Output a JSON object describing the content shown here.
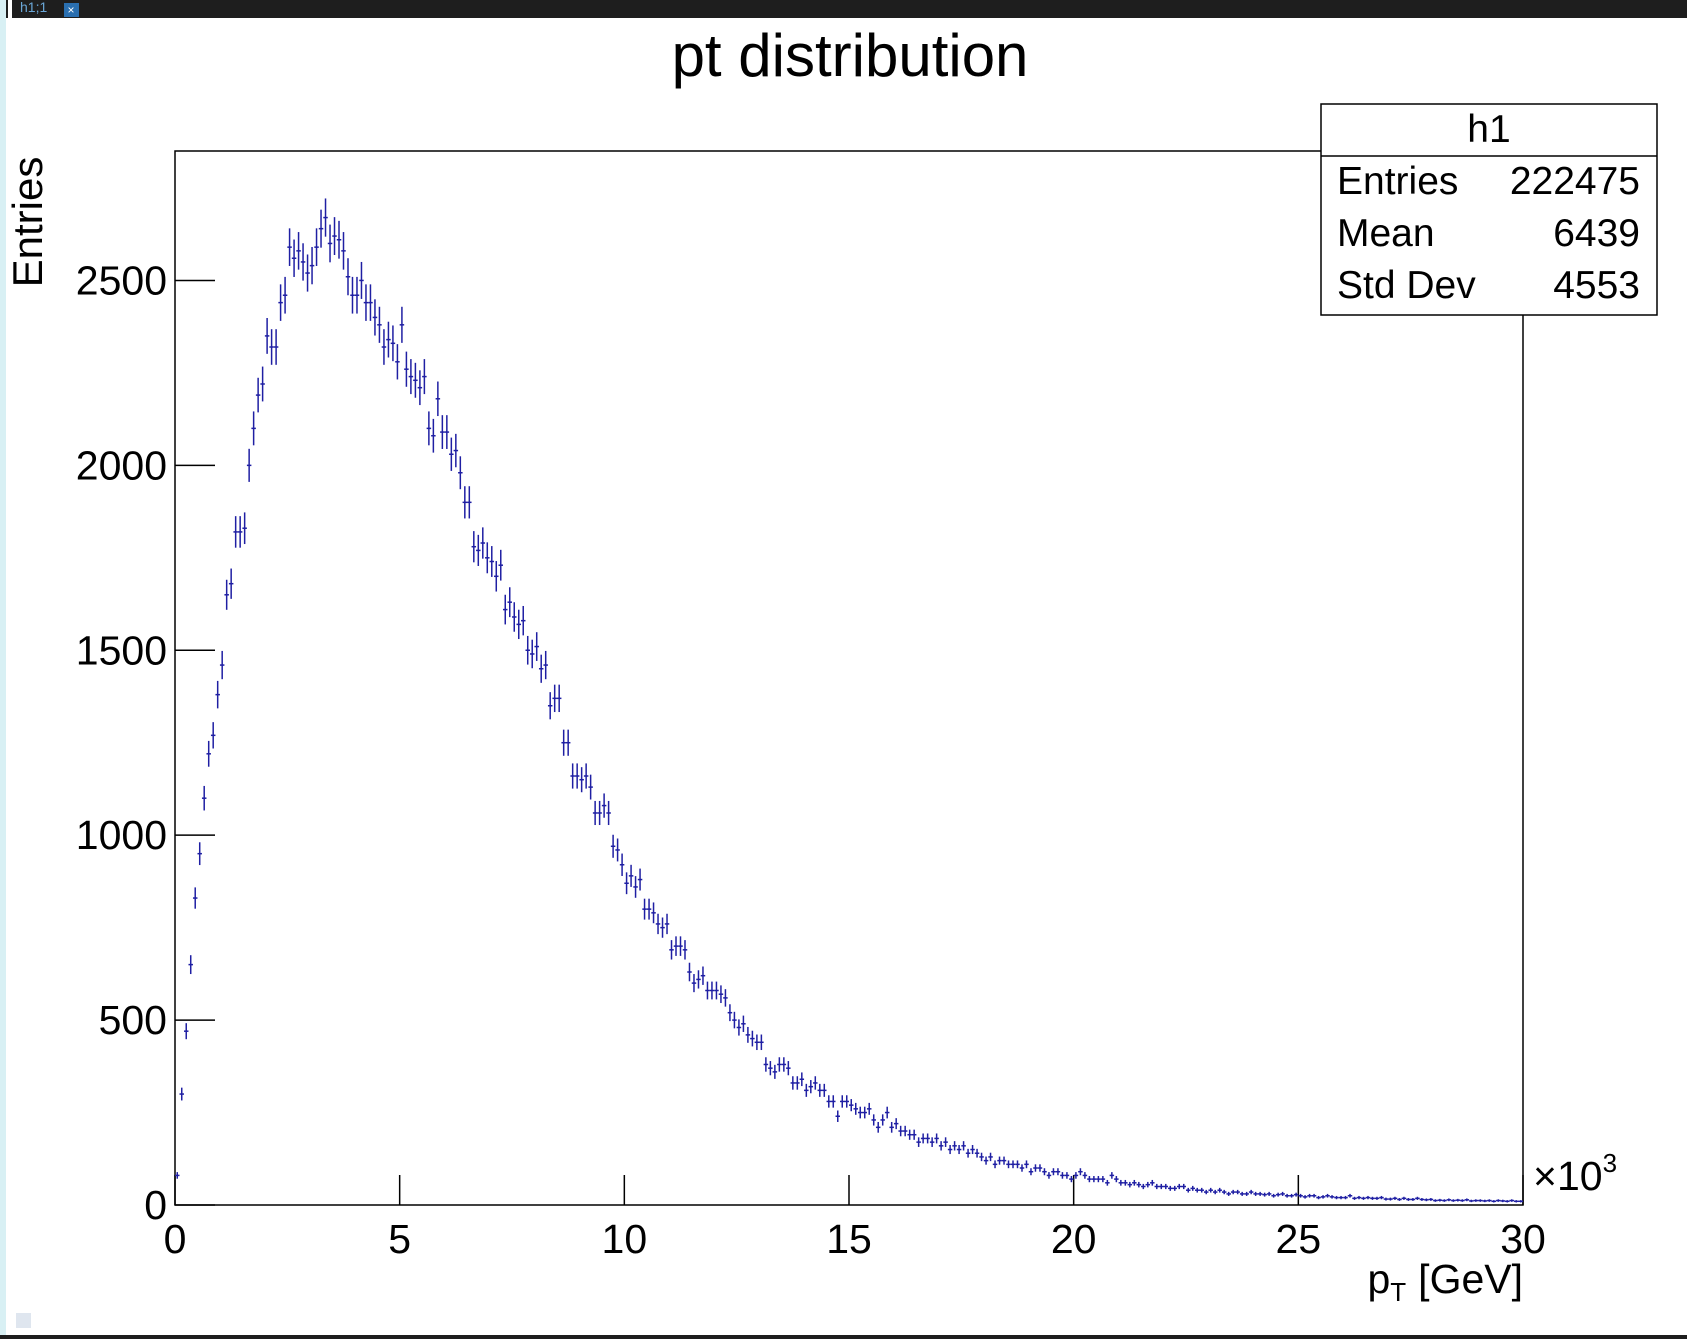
{
  "canvas_tab": "h1;1",
  "chart_data": {
    "type": "histogram",
    "title": "pt distribution",
    "y_label": "Entries",
    "x_label": "p",
    "x_label_sub": "T",
    "x_label_unit": "[GeV]",
    "x_multiplier": "×10",
    "x_multiplier_exp": "3",
    "color": "#1f1fa3",
    "error_bars": true,
    "xlim": [
      0,
      30
    ],
    "xticks": [
      0,
      5,
      10,
      15,
      20,
      25,
      30
    ],
    "ylim": [
      0,
      2850
    ],
    "yticks": [
      0,
      500,
      1000,
      1500,
      2000,
      2500
    ],
    "bins": [
      0,
      0.1,
      0.2,
      0.3,
      0.4,
      0.5,
      0.6,
      0.7,
      0.8,
      0.9,
      1,
      1.1,
      1.2,
      1.3,
      1.4,
      1.5,
      1.6,
      1.7,
      1.8,
      1.9,
      2,
      2.1,
      2.2,
      2.3,
      2.4,
      2.5,
      2.6,
      2.7,
      2.8,
      2.9,
      3,
      3.1,
      3.2,
      3.3,
      3.4,
      3.5,
      3.6,
      3.7,
      3.8,
      3.9,
      4,
      4.1,
      4.2,
      4.3,
      4.4,
      4.5,
      4.6,
      4.7,
      4.8,
      4.9,
      5,
      5.1,
      5.2,
      5.3,
      5.4,
      5.5,
      5.6,
      5.7,
      5.8,
      5.9,
      6,
      6.1,
      6.2,
      6.3,
      6.4,
      6.5,
      6.6,
      6.7,
      6.8,
      6.9,
      7,
      7.1,
      7.2,
      7.3,
      7.4,
      7.5,
      7.6,
      7.7,
      7.8,
      7.9,
      8,
      8.1,
      8.2,
      8.3,
      8.4,
      8.5,
      8.6,
      8.7,
      8.8,
      8.9,
      9,
      9.1,
      9.2,
      9.3,
      9.4,
      9.5,
      9.6,
      9.7,
      9.8,
      9.9,
      10,
      10.1,
      10.2,
      10.3,
      10.4,
      10.5,
      10.6,
      10.7,
      10.8,
      10.9,
      11,
      11.1,
      11.2,
      11.3,
      11.4,
      11.5,
      11.6,
      11.7,
      11.8,
      11.9,
      12,
      12.1,
      12.2,
      12.3,
      12.4,
      12.5,
      12.6,
      12.7,
      12.8,
      12.9,
      13,
      13.1,
      13.2,
      13.3,
      13.4,
      13.5,
      13.6,
      13.7,
      13.8,
      13.9,
      14,
      14.1,
      14.2,
      14.3,
      14.4,
      14.5,
      14.6,
      14.7,
      14.8,
      14.9,
      15,
      15.1,
      15.2,
      15.3,
      15.4,
      15.5,
      15.6,
      15.7,
      15.8,
      15.9,
      16,
      16.1,
      16.2,
      16.3,
      16.4,
      16.5,
      16.6,
      16.7,
      16.8,
      16.9,
      17,
      17.1,
      17.2,
      17.3,
      17.4,
      17.5,
      17.6,
      17.7,
      17.8,
      17.9,
      18,
      18.1,
      18.2,
      18.3,
      18.4,
      18.5,
      18.6,
      18.7,
      18.8,
      18.9,
      19,
      19.1,
      19.2,
      19.3,
      19.4,
      19.5,
      19.6,
      19.7,
      19.8,
      19.9,
      20,
      20.1,
      20.2,
      20.3,
      20.4,
      20.5,
      20.6,
      20.7,
      20.8,
      20.9,
      21,
      21.1,
      21.2,
      21.3,
      21.4,
      21.5,
      21.6,
      21.7,
      21.8,
      21.9,
      22,
      22.1,
      22.2,
      22.3,
      22.4,
      22.5,
      22.6,
      22.7,
      22.8,
      22.9,
      23,
      23.1,
      23.2,
      23.3,
      23.4,
      23.5,
      23.6,
      23.7,
      23.8,
      23.9,
      24,
      24.1,
      24.2,
      24.3,
      24.4,
      24.5,
      24.6,
      24.7,
      24.8,
      24.9,
      25,
      25.1,
      25.2,
      25.3,
      25.4,
      25.5,
      25.6,
      25.7,
      25.8,
      25.9,
      26,
      26.1,
      26.2,
      26.3,
      26.4,
      26.5,
      26.6,
      26.7,
      26.8,
      26.9,
      27,
      27.1,
      27.2,
      27.3,
      27.4,
      27.5,
      27.6,
      27.7,
      27.8,
      27.9,
      28,
      28.1,
      28.2,
      28.3,
      28.4,
      28.5,
      28.6,
      28.7,
      28.8,
      28.9,
      29,
      29.1,
      29.2,
      29.3,
      29.4,
      29.5,
      29.6,
      29.7,
      29.8,
      29.9,
      30
    ],
    "values": [
      80,
      300,
      470,
      650,
      830,
      950,
      1100,
      1220,
      1270,
      1380,
      1460,
      1650,
      1680,
      1820,
      1820,
      1830,
      2000,
      2100,
      2190,
      2220,
      2350,
      2320,
      2320,
      2440,
      2460,
      2590,
      2560,
      2580,
      2550,
      2520,
      2540,
      2590,
      2640,
      2670,
      2600,
      2620,
      2610,
      2580,
      2510,
      2460,
      2460,
      2500,
      2440,
      2440,
      2400,
      2380,
      2320,
      2340,
      2330,
      2280,
      2380,
      2260,
      2240,
      2230,
      2210,
      2240,
      2100,
      2080,
      2180,
      2090,
      2090,
      2030,
      2040,
      1980,
      1900,
      1900,
      1780,
      1770,
      1790,
      1750,
      1740,
      1700,
      1730,
      1610,
      1630,
      1590,
      1570,
      1580,
      1500,
      1490,
      1510,
      1450,
      1460,
      1350,
      1370,
      1370,
      1250,
      1250,
      1160,
      1160,
      1150,
      1160,
      1130,
      1060,
      1060,
      1080,
      1060,
      970,
      960,
      920,
      870,
      890,
      860,
      880,
      800,
      800,
      790,
      760,
      750,
      760,
      690,
      700,
      700,
      690,
      630,
      600,
      610,
      620,
      580,
      580,
      580,
      570,
      560,
      520,
      500,
      480,
      490,
      460,
      450,
      440,
      440,
      380,
      370,
      360,
      380,
      380,
      370,
      330,
      330,
      340,
      310,
      320,
      330,
      310,
      310,
      280,
      280,
      240,
      280,
      280,
      270,
      260,
      250,
      250,
      260,
      230,
      210,
      230,
      250,
      210,
      220,
      200,
      200,
      190,
      190,
      170,
      180,
      180,
      170,
      180,
      160,
      170,
      150,
      160,
      150,
      160,
      140,
      150,
      140,
      130,
      120,
      130,
      110,
      120,
      120,
      110,
      110,
      110,
      100,
      110,
      90,
      100,
      100,
      90,
      80,
      90,
      90,
      80,
      80,
      70,
      80,
      90,
      80,
      70,
      70,
      70,
      70,
      60,
      80,
      70,
      60,
      60,
      55,
      60,
      55,
      50,
      55,
      60,
      50,
      50,
      50,
      45,
      45,
      50,
      50,
      40,
      45,
      40,
      40,
      35,
      40,
      35,
      40,
      35,
      30,
      35,
      35,
      30,
      30,
      35,
      30,
      30,
      28,
      30,
      25,
      28,
      30,
      25,
      25,
      28,
      25,
      22,
      25,
      25,
      20,
      22,
      25,
      22,
      20,
      20,
      20,
      25,
      18,
      20,
      18,
      20,
      18,
      18,
      20,
      16,
      16,
      18,
      15,
      18,
      15,
      15,
      18,
      15,
      14,
      15,
      12,
      13,
      12,
      14,
      12,
      13,
      12,
      14,
      11,
      12,
      12,
      11,
      12,
      10,
      12,
      11,
      10,
      12,
      10,
      10
    ],
    "stats": {
      "title": "h1",
      "rows": [
        {
          "label": "Entries",
          "value": "222475"
        },
        {
          "label": "Mean",
          "value": "6439"
        },
        {
          "label": "Std Dev",
          "value": "4553"
        }
      ]
    }
  }
}
